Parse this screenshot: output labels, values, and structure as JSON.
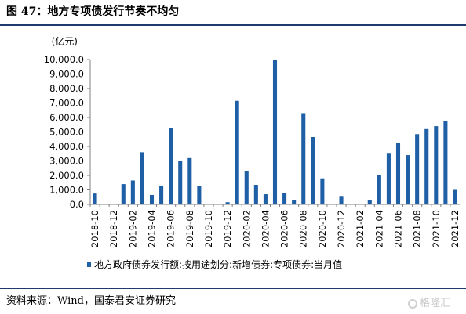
{
  "figure": {
    "title": "图 47：地方专项债发行节奏不均匀",
    "source": "资料来源：Wind，国泰君安证券研究",
    "watermark": "格隆汇"
  },
  "colors": {
    "bar": "#1f5fa6",
    "axis": "#808080",
    "rule": "#1f3a6e"
  },
  "chart_data": {
    "type": "bar",
    "unit_label": "(亿元)",
    "ylim": [
      0,
      10000
    ],
    "y_ticks": [
      "0.0",
      "1,000.0",
      "2,000.0",
      "3,000.0",
      "4,000.0",
      "5,000.0",
      "6,000.0",
      "7,000.0",
      "8,000.0",
      "9,000.0",
      "10,000.0"
    ],
    "x_tick_labels": [
      "2018-10",
      "2018-12",
      "2019-02",
      "2019-04",
      "2019-06",
      "2019-08",
      "2019-10",
      "2019-12",
      "2020-02",
      "2020-04",
      "2020-06",
      "2020-08",
      "2020-10",
      "2020-12",
      "2021-02",
      "2021-04",
      "2021-06",
      "2021-08",
      "2021-10",
      "2021-12"
    ],
    "categories": [
      "2018-10",
      "2018-11",
      "2018-12",
      "2019-01",
      "2019-02",
      "2019-03",
      "2019-04",
      "2019-05",
      "2019-06",
      "2019-07",
      "2019-08",
      "2019-09",
      "2019-10",
      "2019-11",
      "2019-12",
      "2020-01",
      "2020-02",
      "2020-03",
      "2020-04",
      "2020-05",
      "2020-06",
      "2020-07",
      "2020-08",
      "2020-09",
      "2020-10",
      "2020-11",
      "2020-12",
      "2021-01",
      "2021-02",
      "2021-03",
      "2021-04",
      "2021-05",
      "2021-06",
      "2021-07",
      "2021-08",
      "2021-09",
      "2021-10",
      "2021-11",
      "2021-12"
    ],
    "series": [
      {
        "name": "地方政府债券发行额:按用途划分:新增债券:专项债券:当月值",
        "values": [
          750,
          0,
          0,
          1400,
          1650,
          3600,
          650,
          1300,
          5250,
          3000,
          3200,
          1250,
          0,
          0,
          150,
          7150,
          2300,
          1350,
          700,
          10000,
          800,
          300,
          6300,
          4650,
          1800,
          0,
          580,
          0,
          0,
          270,
          2050,
          3500,
          4250,
          3400,
          4850,
          5200,
          5400,
          5750,
          1000
        ]
      }
    ]
  }
}
